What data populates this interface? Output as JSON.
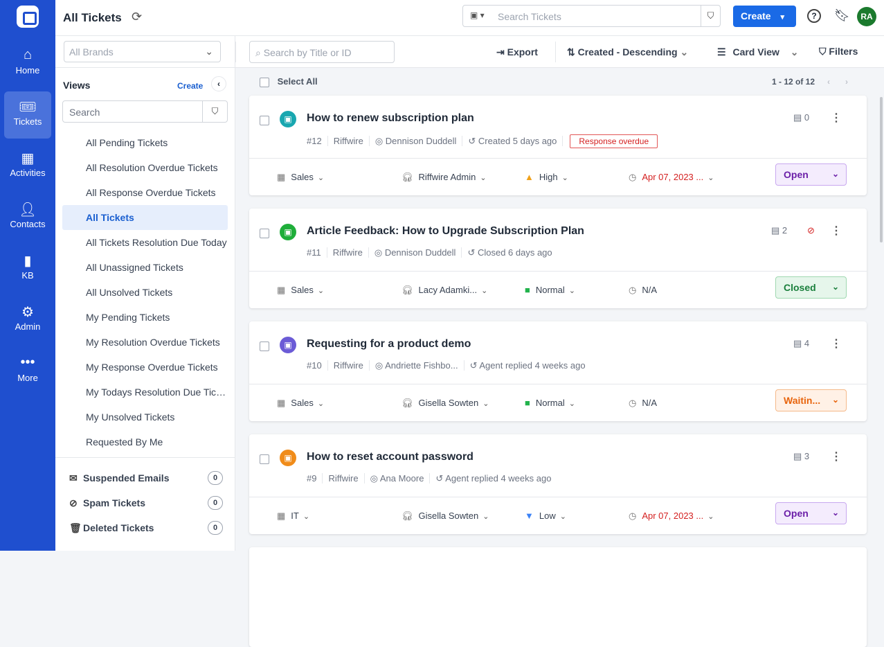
{
  "nav": {
    "items": [
      {
        "label": "Home",
        "icon": "home-icon"
      },
      {
        "label": "Tickets",
        "icon": "ticket-icon",
        "active": true
      },
      {
        "label": "Activities",
        "icon": "calendar-icon"
      },
      {
        "label": "Contacts",
        "icon": "user-icon"
      },
      {
        "label": "KB",
        "icon": "book-icon"
      },
      {
        "label": "Admin",
        "icon": "gear-icon"
      },
      {
        "label": "More",
        "icon": "more-icon"
      }
    ]
  },
  "header": {
    "title": "All Tickets",
    "search_placeholder": "Search Tickets",
    "create_label": "Create",
    "avatar": "RA"
  },
  "sidebar": {
    "brands_placeholder": "All Brands",
    "views_label": "Views",
    "create_label": "Create",
    "search_placeholder": "Search",
    "views": [
      "All Pending Tickets",
      "All Resolution Overdue Tickets",
      "All Response Overdue Tickets",
      "All Tickets",
      "All Tickets Resolution Due Today",
      "All Unassigned Tickets",
      "All Unsolved Tickets",
      "My Pending Tickets",
      "My Resolution Overdue Tickets",
      "My Response Overdue Tickets",
      "My Todays Resolution Due Tickets",
      "My Unsolved Tickets",
      "Requested By Me"
    ],
    "active_view": "All Tickets",
    "system": [
      {
        "label": "Suspended Emails",
        "count": "0"
      },
      {
        "label": "Spam Tickets",
        "count": "0"
      },
      {
        "label": "Deleted Tickets",
        "count": "0"
      }
    ]
  },
  "toolbar": {
    "search_placeholder": "Search by Title or ID",
    "export": "Export",
    "sort": "Created - Descending",
    "view": "Card View",
    "filters": "Filters",
    "select_all": "Select All",
    "pagination": "1 - 12 of 12"
  },
  "colors": {
    "nav": "#1f4fcf",
    "primary": "#1a6ae6",
    "overdue": "#d42020"
  },
  "tickets": [
    {
      "title": "How to renew subscription plan",
      "id": "#12",
      "brand": "Riffwire",
      "contact": "Dennison Duddell",
      "activity": "Created 5 days ago",
      "badge": "Response overdue",
      "comments": "0",
      "category": "Sales",
      "agent": "Riffwire Admin",
      "priority": "High",
      "due": "Apr 07, 2023 ...",
      "status": "Open",
      "icon_color": "#19a7b0"
    },
    {
      "title": "Article Feedback: How to Upgrade Subscription Plan",
      "id": "#11",
      "brand": "Riffwire",
      "contact": "Dennison Duddell",
      "activity": "Closed 6 days ago",
      "comments": "2",
      "hidden": true,
      "category": "Sales",
      "agent": "Lacy Adamki...",
      "priority": "Normal",
      "due": "N/A",
      "status": "Closed",
      "icon_color": "#1fae3a"
    },
    {
      "title": "Requesting for a product demo",
      "id": "#10",
      "brand": "Riffwire",
      "contact": "Andriette Fishbo...",
      "activity": "Agent replied 4 weeks ago",
      "comments": "4",
      "category": "Sales",
      "agent": "Gisella Sowten",
      "priority": "Normal",
      "due": "N/A",
      "status": "Waitin...",
      "icon_color": "#6b5bd6"
    },
    {
      "title": "How to reset account password",
      "id": "#9",
      "brand": "Riffwire",
      "contact": "Ana Moore",
      "activity": "Agent replied 4 weeks ago",
      "comments": "3",
      "category": "IT",
      "agent": "Gisella Sowten",
      "priority": "Low",
      "due": "Apr 07, 2023 ...",
      "status": "Open",
      "icon_color": "#f08c1a"
    }
  ]
}
